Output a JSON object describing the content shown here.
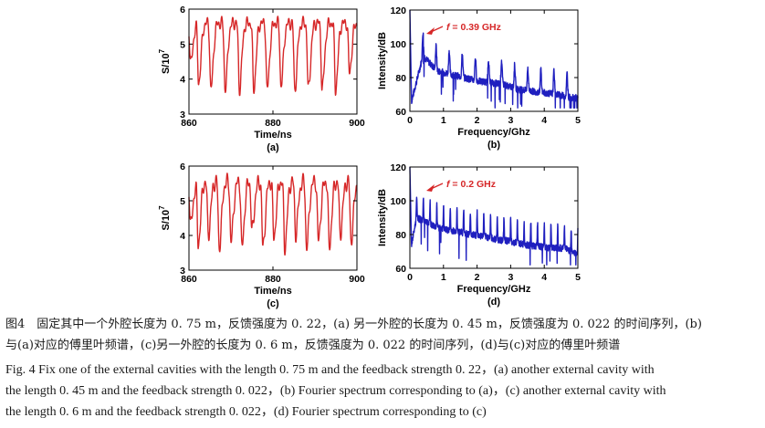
{
  "panels": [
    {
      "id": "a",
      "sublabel": "(a)",
      "xlabel": "Time/ns",
      "ylabel": "S/10",
      "ylabel_exp": "7",
      "x_ticks": [
        "860",
        "880",
        "900"
      ],
      "y_ticks": [
        "3",
        "4",
        "5",
        "6"
      ],
      "annotation": ""
    },
    {
      "id": "b",
      "sublabel": "(b)",
      "xlabel": "Frequency/Ghz",
      "ylabel": "Intensity/dB",
      "x_ticks": [
        "0",
        "1",
        "2",
        "3",
        "4",
        "5"
      ],
      "y_ticks": [
        "60",
        "80",
        "100",
        "120"
      ],
      "annotation": "f = 0.39 GHz"
    },
    {
      "id": "c",
      "sublabel": "(c)",
      "xlabel": "Time/ns",
      "ylabel": "S/10",
      "ylabel_exp": "7",
      "x_ticks": [
        "860",
        "880",
        "900"
      ],
      "y_ticks": [
        "3",
        "4",
        "5",
        "6"
      ],
      "annotation": ""
    },
    {
      "id": "d",
      "sublabel": "(d)",
      "xlabel": "Frequency/GHz",
      "ylabel": "Intensity/dB",
      "x_ticks": [
        "0",
        "1",
        "2",
        "3",
        "4",
        "5"
      ],
      "y_ticks": [
        "60",
        "80",
        "100",
        "120"
      ],
      "annotation": "f = 0.2 GHz"
    }
  ],
  "colors": {
    "time_series": "#d62728",
    "spectrum": "#1f1fbf",
    "axis": "#000000"
  },
  "caption": {
    "zh_line1": "图4　固定其中一个外腔长度为 0. 75 m，反馈强度为 0. 22，(a) 另一外腔的长度为 0. 45 m，反馈强度为 0. 022 的时间序列，(b)",
    "zh_line2": "与(a)对应的傅里叶频谱，(c)另一外腔的长度为 0. 6 m，反馈强度为 0. 022 的时间序列，(d)与(c)对应的傅里叶频谱",
    "en_line1": "Fig.  4    Fix one of the external cavities with the length 0. 75 m and the feedback strength 0. 22，(a) another external cavity with",
    "en_line2": "the length 0. 45 m and the feedback strength 0. 022，(b) Fourier spectrum corresponding to (a)，(c) another external cavity with",
    "en_line3": "the length 0. 6 m and the feedback strength 0. 022，(d) Fourier spectrum corresponding to (c)"
  },
  "chart_data": [
    {
      "panel": "a",
      "type": "line",
      "xlabel": "Time/ns",
      "ylabel": "S/10^7",
      "xlim": [
        860,
        900
      ],
      "ylim": [
        3,
        6
      ],
      "series": [
        {
          "pulse_times_ns": [
            860.4,
            862.3,
            865.2,
            868.6,
            872.0,
            875.4,
            878.6,
            881.9,
            885.2,
            888.4,
            891.7,
            894.9,
            898.2
          ],
          "pulse_minima": [
            4.6,
            4.0,
            3.8,
            3.8,
            3.8,
            3.8,
            3.8,
            3.9,
            3.8,
            3.8,
            3.8,
            3.8,
            4.3
          ],
          "baseline_range": [
            5.4,
            5.8
          ]
        }
      ]
    },
    {
      "panel": "b",
      "type": "line",
      "xlabel": "Frequency/Ghz",
      "ylabel": "Intensity/dB",
      "xlim": [
        0,
        5
      ],
      "ylim": [
        60,
        120
      ],
      "annotation": "f = 0.39 GHz",
      "series": [
        {
          "x": [
            0.0,
            0.05,
            0.39,
            0.8,
            1.2,
            1.6,
            2.0,
            2.4,
            2.8,
            3.2,
            3.6,
            4.0,
            4.4,
            4.8,
            5.0
          ],
          "y": [
            120,
            78,
            105,
            96,
            94,
            92,
            90,
            89,
            88,
            85,
            84,
            83,
            82,
            80,
            80
          ],
          "note": "comb of peaks spaced ~0.39 GHz, dips to 65–85 dB between peaks"
        }
      ]
    },
    {
      "panel": "c",
      "type": "line",
      "xlabel": "Time/ns",
      "ylabel": "S/10^7",
      "xlim": [
        860,
        900
      ],
      "ylim": [
        3,
        6
      ],
      "series": [
        {
          "pulse_times_ns": [
            860.4,
            862.2,
            864.6,
            867.2,
            870.0,
            872.6,
            875.0,
            877.6,
            880.2,
            882.8,
            885.4,
            888.0,
            890.8,
            893.4,
            896.0,
            898.6
          ],
          "pulse_minima": [
            4.5,
            3.9,
            4.2,
            3.8,
            4.0,
            3.8,
            4.3,
            3.8,
            4.1,
            3.8,
            4.2,
            3.8,
            4.0,
            3.8,
            4.2,
            4.0
          ],
          "baseline_range": [
            5.3,
            5.8
          ]
        }
      ]
    },
    {
      "panel": "d",
      "type": "line",
      "xlabel": "Frequency/GHz",
      "ylabel": "Intensity/dB",
      "xlim": [
        0,
        5
      ],
      "ylim": [
        60,
        120
      ],
      "annotation": "f = 0.2 GHz",
      "series": [
        {
          "x": [
            0.0,
            0.05,
            0.2,
            0.6,
            1.0,
            1.4,
            1.8,
            2.2,
            2.6,
            3.0,
            3.4,
            3.8,
            4.2,
            4.6,
            5.0
          ],
          "y": [
            120,
            86,
            102,
            98,
            95,
            94,
            92,
            91,
            89,
            88,
            86,
            85,
            84,
            84,
            80
          ],
          "note": "comb of peaks spaced ~0.2 GHz, dips to 68–85 dB between peaks"
        }
      ]
    }
  ]
}
